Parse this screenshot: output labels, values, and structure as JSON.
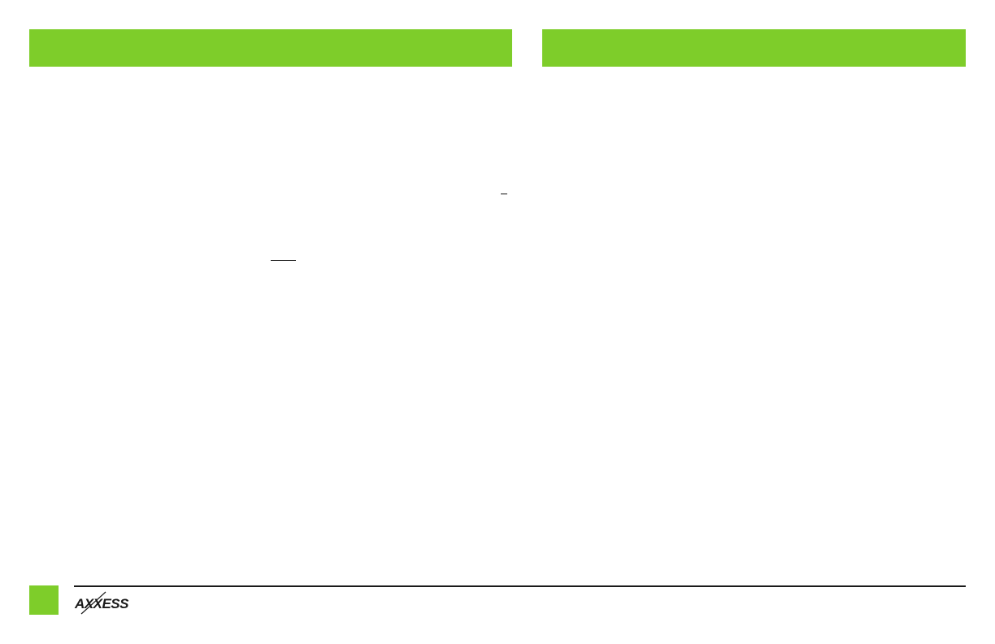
{
  "colors": {
    "accent": "#7ecd2a",
    "rule": "#1a1a1a"
  },
  "footer": {
    "logo_text": "AXXESS"
  }
}
